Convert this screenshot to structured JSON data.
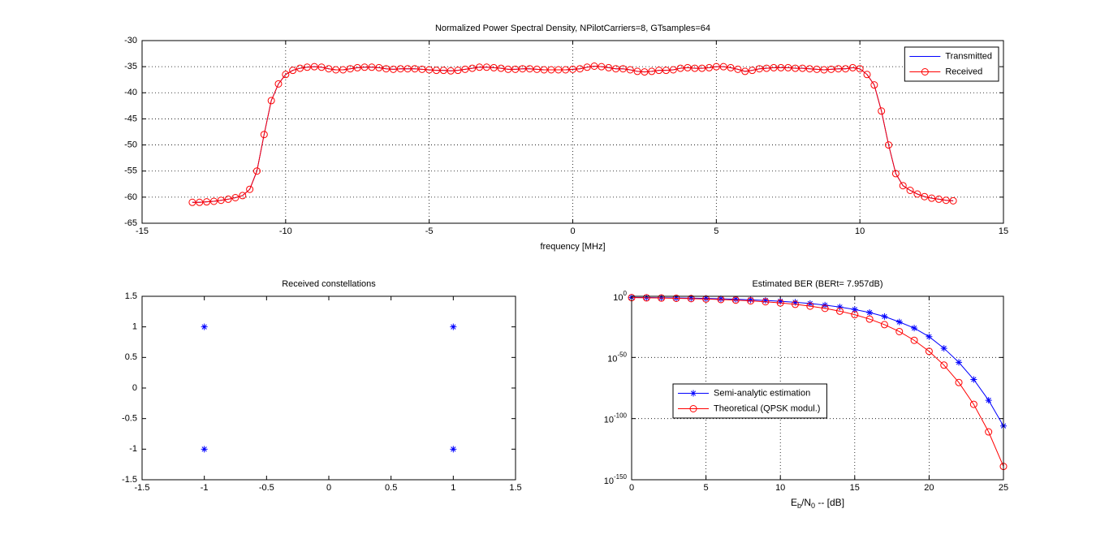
{
  "chart_data": [
    {
      "type": "line",
      "title": "Normalized Power Spectral Density, NPilotCarriers=8, GTsamples=64",
      "xlabel": "frequency [MHz]",
      "x": [
        -13.25,
        -13,
        -12.75,
        -12.5,
        -12.25,
        -12,
        -11.75,
        -11.5,
        -11.25,
        -11,
        -10.75,
        -10.5,
        -10.25,
        -10,
        -9.75,
        -9.5,
        -9.25,
        -9,
        -8.75,
        -8.5,
        -8.25,
        -8,
        -7.75,
        -7.5,
        -7.25,
        -7,
        -6.75,
        -6.5,
        -6.25,
        -6,
        -5.75,
        -5.5,
        -5.25,
        -5,
        -4.75,
        -4.5,
        -4.25,
        -4,
        -3.75,
        -3.5,
        -3.25,
        -3,
        -2.75,
        -2.5,
        -2.25,
        -2,
        -1.75,
        -1.5,
        -1.25,
        -1,
        -0.75,
        -0.5,
        -0.25,
        0,
        0.25,
        0.5,
        0.75,
        1,
        1.25,
        1.5,
        1.75,
        2,
        2.25,
        2.5,
        2.75,
        3,
        3.25,
        3.5,
        3.75,
        4,
        4.25,
        4.5,
        4.75,
        5,
        5.25,
        5.5,
        5.75,
        6,
        6.25,
        6.5,
        6.75,
        7,
        7.25,
        7.5,
        7.75,
        8,
        8.25,
        8.5,
        8.75,
        9,
        9.25,
        9.5,
        9.75,
        10,
        10.25,
        10.5,
        10.75,
        11,
        11.25,
        11.5,
        11.75,
        12,
        12.25,
        12.5,
        12.75,
        13,
        13.25
      ],
      "series": [
        {
          "name": "Transmitted",
          "color": "#0000ff",
          "marker": "none",
          "values": [
            -61,
            -61,
            -60.9,
            -60.8,
            -60.6,
            -60.4,
            -60.1,
            -59.7,
            -58.5,
            -55,
            -48,
            -41.5,
            -38.3,
            -36.5,
            -35.7,
            -35.3,
            -35.1,
            -35,
            -35.1,
            -35.4,
            -35.6,
            -35.6,
            -35.4,
            -35.2,
            -35.1,
            -35.1,
            -35.2,
            -35.4,
            -35.5,
            -35.4,
            -35.4,
            -35.4,
            -35.5,
            -35.6,
            -35.7,
            -35.7,
            -35.8,
            -35.7,
            -35.5,
            -35.3,
            -35.1,
            -35.1,
            -35.2,
            -35.3,
            -35.5,
            -35.5,
            -35.4,
            -35.4,
            -35.5,
            -35.6,
            -35.6,
            -35.6,
            -35.6,
            -35.5,
            -35.4,
            -35.1,
            -34.9,
            -35,
            -35.2,
            -35.4,
            -35.4,
            -35.6,
            -35.9,
            -36,
            -35.9,
            -35.7,
            -35.7,
            -35.6,
            -35.3,
            -35.2,
            -35.3,
            -35.3,
            -35.2,
            -35,
            -35,
            -35.2,
            -35.5,
            -35.9,
            -35.7,
            -35.4,
            -35.3,
            -35.2,
            -35.2,
            -35.2,
            -35.3,
            -35.3,
            -35.4,
            -35.5,
            -35.6,
            -35.5,
            -35.4,
            -35.4,
            -35.2,
            -35.4,
            -36.5,
            -38.5,
            -43.5,
            -50,
            -55.5,
            -57.8,
            -58.7,
            -59.4,
            -59.9,
            -60.2,
            -60.4,
            -60.6,
            -60.7
          ]
        },
        {
          "name": "Received",
          "color": "#ff0000",
          "marker": "o",
          "values": [
            -61,
            -61,
            -60.9,
            -60.8,
            -60.6,
            -60.4,
            -60.1,
            -59.7,
            -58.5,
            -55,
            -48,
            -41.5,
            -38.3,
            -36.5,
            -35.7,
            -35.3,
            -35.1,
            -35,
            -35.1,
            -35.4,
            -35.6,
            -35.6,
            -35.4,
            -35.2,
            -35.1,
            -35.1,
            -35.2,
            -35.4,
            -35.5,
            -35.4,
            -35.4,
            -35.4,
            -35.5,
            -35.6,
            -35.7,
            -35.7,
            -35.8,
            -35.7,
            -35.5,
            -35.3,
            -35.1,
            -35.1,
            -35.2,
            -35.3,
            -35.5,
            -35.5,
            -35.4,
            -35.4,
            -35.5,
            -35.6,
            -35.6,
            -35.6,
            -35.6,
            -35.5,
            -35.4,
            -35.1,
            -34.9,
            -35,
            -35.2,
            -35.4,
            -35.4,
            -35.6,
            -35.9,
            -36,
            -35.9,
            -35.7,
            -35.7,
            -35.6,
            -35.3,
            -35.2,
            -35.3,
            -35.3,
            -35.2,
            -35,
            -35,
            -35.2,
            -35.5,
            -35.9,
            -35.7,
            -35.4,
            -35.3,
            -35.2,
            -35.2,
            -35.2,
            -35.3,
            -35.3,
            -35.4,
            -35.5,
            -35.6,
            -35.5,
            -35.4,
            -35.4,
            -35.2,
            -35.4,
            -36.5,
            -38.5,
            -43.5,
            -50,
            -55.5,
            -57.8,
            -58.7,
            -59.4,
            -59.9,
            -60.2,
            -60.4,
            -60.6,
            -60.7
          ]
        }
      ],
      "xlim": [
        -15,
        15
      ],
      "xticks": [
        -15,
        -10,
        -5,
        0,
        5,
        10,
        15
      ],
      "ylim": [
        -65,
        -30
      ],
      "yticks": [
        -65,
        -60,
        -55,
        -50,
        -45,
        -40,
        -35,
        -30
      ],
      "grid": true,
      "legend": "northeast"
    },
    {
      "type": "scatter",
      "title": "Received constellations",
      "series": [
        {
          "color": "#0000ff",
          "marker": "*",
          "x": [
            -1,
            -1,
            1,
            1
          ],
          "values": [
            1,
            -1,
            1,
            -1
          ]
        }
      ],
      "xlim": [
        -1.5,
        1.5
      ],
      "xticks": [
        -1.5,
        -1,
        -0.5,
        0,
        0.5,
        1,
        1.5
      ],
      "ylim": [
        -1.5,
        1.5
      ],
      "yticks": [
        -1.5,
        -1,
        -0.5,
        0,
        0.5,
        1,
        1.5
      ],
      "grid": false
    },
    {
      "type": "line",
      "title": "Estimated BER (BERt= 7.957dB)",
      "xlabel": [
        "E",
        "b",
        "/N",
        "0",
        "  --  [dB]"
      ],
      "x": [
        0,
        1,
        2,
        3,
        4,
        5,
        6,
        7,
        8,
        9,
        10,
        11,
        12,
        13,
        14,
        15,
        16,
        17,
        18,
        19,
        20,
        21,
        22,
        23,
        24,
        25
      ],
      "series": [
        {
          "name": "Semi-analytic estimation",
          "color": "#0000ff",
          "marker": "*",
          "values": [
            0.126,
            0.1,
            0.071,
            0.05,
            0.032,
            0.018,
            0.0089,
            0.004,
            0.0013,
            0.0004,
            8e-05,
            1.3e-05,
            1.3e-06,
            6.3e-08,
            1.6e-09,
            1.6e-11,
            5e-14,
            3e-17,
            1e-21,
            1e-26,
            1e-33,
            3e-43,
            1e-54,
            1e-68,
            1e-85,
            1e-106
          ]
        },
        {
          "name": "Theoretical (QPSK modul.)",
          "color": "#ff0000",
          "marker": "o",
          "values": [
            0.0786,
            0.0563,
            0.0375,
            0.0229,
            0.0125,
            0.00596,
            0.00239,
            0.00077,
            0.00019,
            3.36e-05,
            3.87e-06,
            2.7e-07,
            9.3e-09,
            1.4e-10,
            6.9e-13,
            9.3e-16,
            2.3e-19,
            6.8e-24,
            1.4e-29,
            1e-36,
            1e-45,
            5.2e-57,
            3.2e-71,
            4.5e-89,
            1.4e-111,
            7.9e-140
          ]
        }
      ],
      "xlim": [
        0,
        25
      ],
      "xticks": [
        0,
        5,
        10,
        15,
        20,
        25
      ],
      "ylim": [
        1e-150,
        1
      ],
      "ylog": true,
      "yticks": [
        {
          "value": 1e-150,
          "label": "10",
          "exponent": "-150"
        },
        {
          "value": 1e-100,
          "label": "10",
          "exponent": "-100"
        },
        {
          "value": 1e-50,
          "label": "10",
          "exponent": "-50"
        },
        {
          "value": 1,
          "label": "10",
          "exponent": "0"
        }
      ],
      "grid": true,
      "legend": "southwest"
    }
  ]
}
